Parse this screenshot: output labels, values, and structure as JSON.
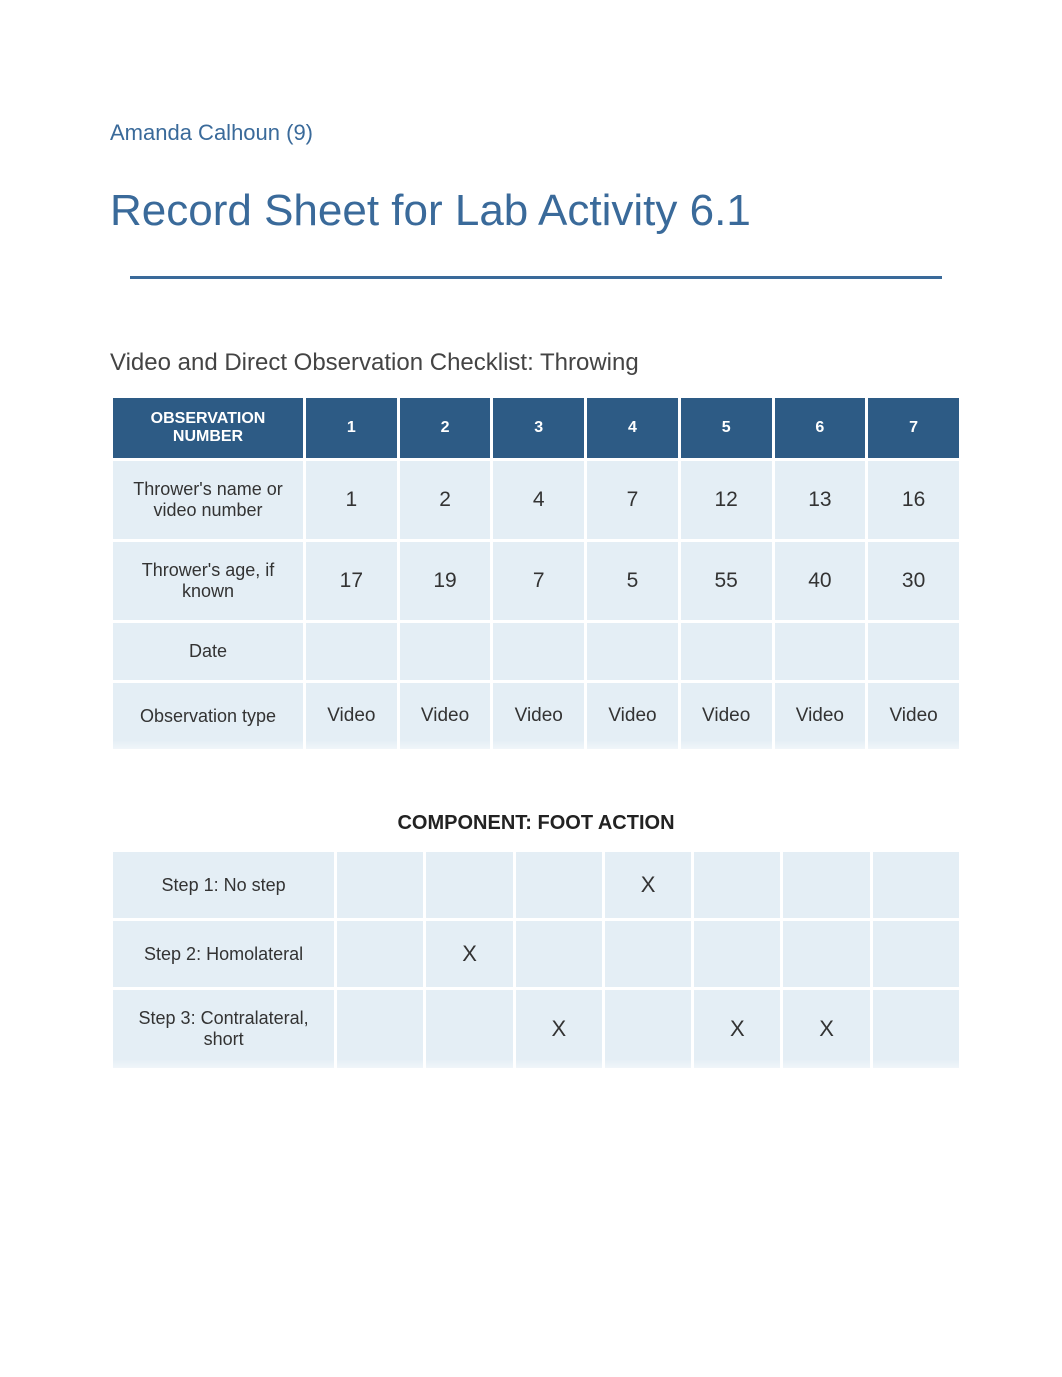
{
  "author": "Amanda Calhoun (9)",
  "title": "Record Sheet for Lab Activity 6.1",
  "subhead": "Video and Direct Observation Checklist: Throwing",
  "colors": {
    "accent": "#3a6a9a",
    "table_header_bg": "#2d5b85",
    "table_header_fg": "#ffffff",
    "cell_bg": "#e4eef5",
    "text": "#333333",
    "page_bg": "#ffffff"
  },
  "table1": {
    "header_label": "OBSERVATION NUMBER",
    "columns": [
      "1",
      "2",
      "3",
      "4",
      "5",
      "6",
      "7"
    ],
    "rows": [
      {
        "label": "Thrower's name or video number",
        "cells": [
          "1",
          "2",
          "4",
          "7",
          "12",
          "13",
          "16"
        ]
      },
      {
        "label": "Thrower's age, if known",
        "cells": [
          "17",
          "19",
          "7",
          "5",
          "55",
          "40",
          "30"
        ]
      },
      {
        "label": "Date",
        "cells": [
          "",
          "",
          "",
          "",
          "",
          "",
          ""
        ]
      },
      {
        "label": "Observation type",
        "cells": [
          "Video",
          "Video",
          "Video",
          "Video",
          "Video",
          "Video",
          "Video"
        ]
      }
    ]
  },
  "component_heading": "COMPONENT: FOOT ACTION",
  "table2": {
    "rows": [
      {
        "label": "Step 1: No step",
        "cells": [
          "",
          "",
          "",
          "X",
          "",
          "",
          ""
        ]
      },
      {
        "label": "Step 2: Homolateral",
        "cells": [
          "",
          "X",
          "",
          "",
          "",
          "",
          ""
        ]
      },
      {
        "label": "Step 3: Contralateral, short",
        "cells": [
          "",
          "",
          "X",
          "",
          "X",
          "X",
          ""
        ]
      }
    ]
  }
}
